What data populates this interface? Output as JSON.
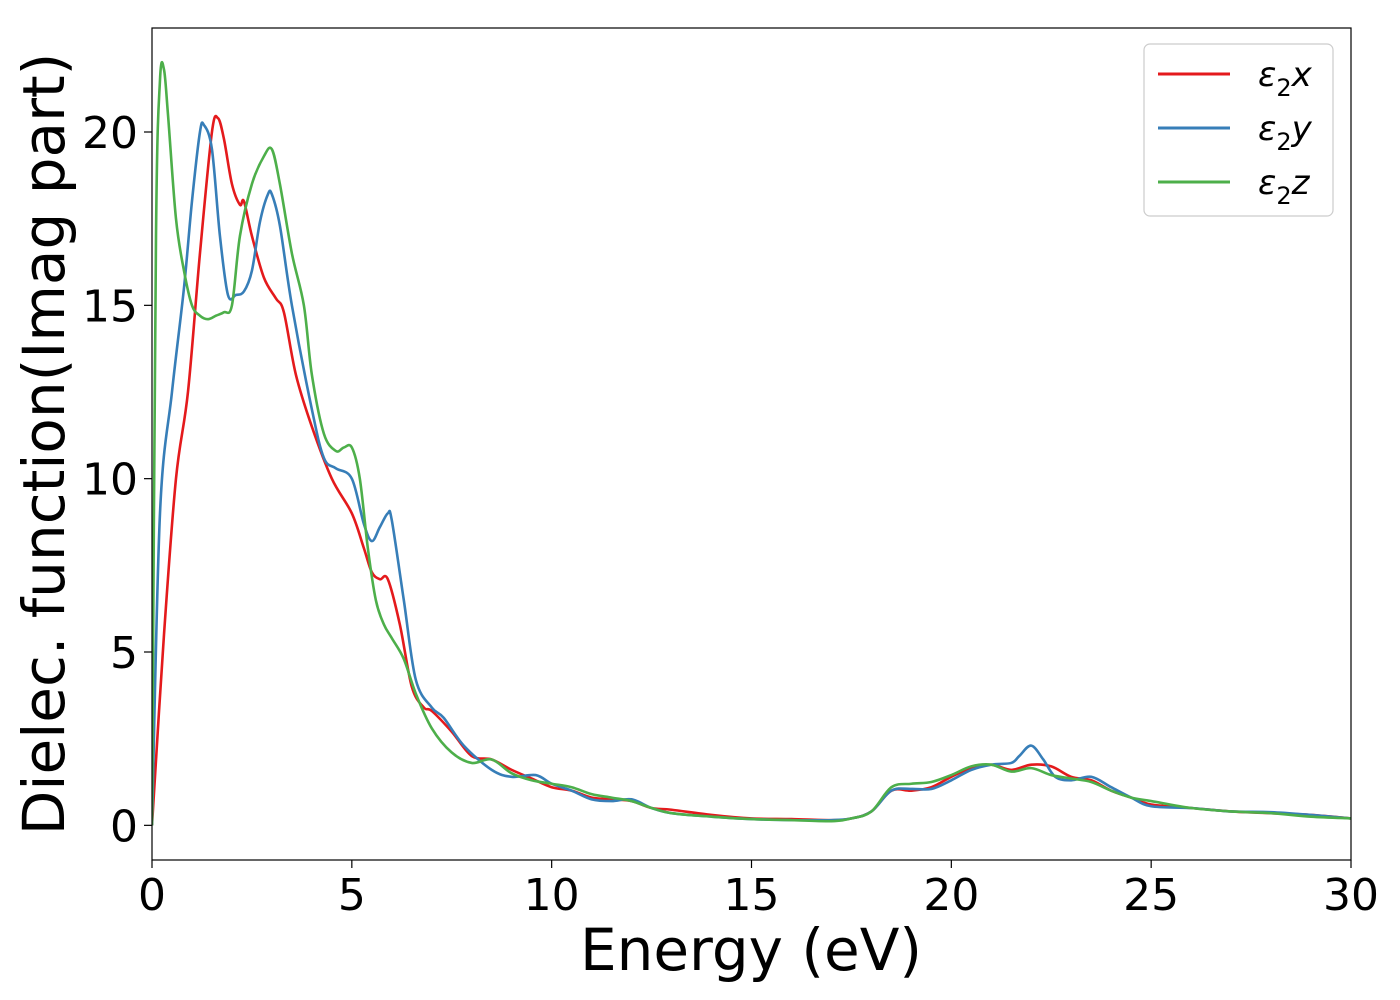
{
  "chart_data": {
    "type": "line",
    "xlabel": "Energy (eV)",
    "ylabel": "Dielec. function(Imag part)",
    "xlim": [
      0,
      30
    ],
    "ylim": [
      -1,
      23
    ],
    "xticks": [
      0,
      5,
      10,
      15,
      20,
      25,
      30
    ],
    "yticks": [
      0,
      5,
      10,
      15,
      20
    ],
    "grid": false,
    "legend_position": "top-right",
    "series": [
      {
        "name_main": "ε",
        "name_sub": "2",
        "name_tail": "x",
        "color": "#e41a1c",
        "x": [
          0,
          0.3,
          0.6,
          0.9,
          1.2,
          1.5,
          1.65,
          1.8,
          2.0,
          2.2,
          2.3,
          2.5,
          2.8,
          3.1,
          3.3,
          3.6,
          4.0,
          4.5,
          5.0,
          5.3,
          5.5,
          5.7,
          5.9,
          6.2,
          6.5,
          6.8,
          7.0,
          7.5,
          8.0,
          8.5,
          9.0,
          9.5,
          10.0,
          10.5,
          11.0,
          11.5,
          12.0,
          12.5,
          13,
          14,
          15,
          16,
          17,
          17.5,
          18,
          18.5,
          19,
          19.5,
          20,
          20.5,
          21,
          21.5,
          22,
          22.5,
          23,
          23.5,
          24,
          24.5,
          25,
          26,
          27,
          28,
          29,
          30
        ],
        "y": [
          0,
          5.5,
          10,
          12.5,
          16.5,
          20.0,
          20.4,
          19.8,
          18.5,
          17.9,
          18.0,
          17.0,
          15.8,
          15.2,
          14.8,
          13.0,
          11.5,
          10.0,
          9.0,
          8.0,
          7.3,
          7.1,
          7.1,
          5.8,
          4.0,
          3.4,
          3.3,
          2.7,
          2.0,
          1.9,
          1.6,
          1.35,
          1.1,
          1.0,
          0.8,
          0.75,
          0.7,
          0.5,
          0.45,
          0.3,
          0.2,
          0.18,
          0.15,
          0.2,
          0.4,
          1.0,
          1.0,
          1.1,
          1.4,
          1.65,
          1.75,
          1.6,
          1.75,
          1.7,
          1.4,
          1.3,
          1.0,
          0.8,
          0.6,
          0.5,
          0.4,
          0.35,
          0.3,
          0.2
        ]
      },
      {
        "name_main": "ε",
        "name_sub": "2",
        "name_tail": "y",
        "color": "#377eb8",
        "x": [
          0,
          0.2,
          0.5,
          0.8,
          1.0,
          1.2,
          1.3,
          1.5,
          1.7,
          1.9,
          2.1,
          2.3,
          2.5,
          2.7,
          2.9,
          3.0,
          3.2,
          3.5,
          4.0,
          4.3,
          4.6,
          5.0,
          5.3,
          5.5,
          5.7,
          5.9,
          6.0,
          6.3,
          6.6,
          7.0,
          7.3,
          7.8,
          8.5,
          9.0,
          9.6,
          10.0,
          10.5,
          11.0,
          11.5,
          12.0,
          12.5,
          13,
          14,
          15,
          16,
          17,
          17.5,
          18,
          18.5,
          19,
          19.5,
          20,
          20.5,
          21,
          21.5,
          21.7,
          22,
          22.3,
          22.6,
          23,
          23.5,
          24,
          24.5,
          25,
          26,
          27,
          28,
          29,
          30
        ],
        "y": [
          0,
          9,
          12.5,
          15.5,
          18,
          20.0,
          20.2,
          19.5,
          17,
          15.3,
          15.3,
          15.4,
          16.0,
          17.4,
          18.2,
          18.2,
          17.3,
          15.0,
          12.0,
          10.6,
          10.3,
          10.0,
          8.7,
          8.2,
          8.6,
          9.0,
          8.8,
          6.5,
          4.2,
          3.4,
          3.1,
          2.3,
          1.6,
          1.4,
          1.45,
          1.2,
          1.0,
          0.75,
          0.7,
          0.75,
          0.5,
          0.35,
          0.25,
          0.18,
          0.15,
          0.15,
          0.2,
          0.4,
          1.0,
          1.05,
          1.05,
          1.3,
          1.6,
          1.75,
          1.8,
          2.0,
          2.3,
          1.9,
          1.4,
          1.3,
          1.4,
          1.1,
          0.8,
          0.55,
          0.5,
          0.4,
          0.38,
          0.3,
          0.2
        ]
      },
      {
        "name_main": "ε",
        "name_sub": "2",
        "name_tail": "z",
        "color": "#4daf4a",
        "x": [
          0,
          0.1,
          0.2,
          0.3,
          0.4,
          0.6,
          0.8,
          1.0,
          1.2,
          1.4,
          1.6,
          1.8,
          2.0,
          2.2,
          2.5,
          2.8,
          3.0,
          3.2,
          3.5,
          3.8,
          4.0,
          4.3,
          4.6,
          4.8,
          5.0,
          5.2,
          5.4,
          5.6,
          5.8,
          6.0,
          6.3,
          6.6,
          7.0,
          7.5,
          8.0,
          8.5,
          9.0,
          9.5,
          10.0,
          10.5,
          11.0,
          11.5,
          12.0,
          12.5,
          13,
          14,
          15,
          16,
          17,
          17.5,
          18,
          18.5,
          19,
          19.5,
          20,
          20.5,
          21,
          21.5,
          22,
          22.5,
          23,
          23.5,
          24,
          24.5,
          25,
          26,
          27,
          28,
          29,
          30
        ],
        "y": [
          0,
          17,
          21.5,
          21.8,
          20.5,
          17.5,
          16.0,
          15.0,
          14.7,
          14.6,
          14.7,
          14.8,
          15.0,
          17.0,
          18.5,
          19.3,
          19.5,
          18.5,
          16.5,
          15.0,
          13.0,
          11.3,
          10.8,
          10.9,
          10.9,
          10.0,
          8.0,
          6.5,
          5.8,
          5.4,
          4.8,
          3.8,
          2.8,
          2.1,
          1.8,
          1.9,
          1.5,
          1.3,
          1.2,
          1.1,
          0.9,
          0.8,
          0.7,
          0.5,
          0.35,
          0.25,
          0.18,
          0.15,
          0.12,
          0.2,
          0.4,
          1.1,
          1.2,
          1.25,
          1.45,
          1.7,
          1.75,
          1.55,
          1.65,
          1.45,
          1.35,
          1.25,
          1.0,
          0.8,
          0.7,
          0.5,
          0.4,
          0.35,
          0.25,
          0.2
        ]
      }
    ]
  }
}
